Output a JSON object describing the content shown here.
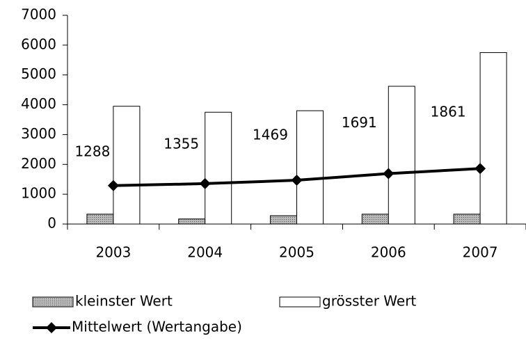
{
  "chart_data": {
    "type": "bar",
    "categories": [
      "2003",
      "2004",
      "2005",
      "2006",
      "2007"
    ],
    "series": [
      {
        "name": "kleinster Wert",
        "type": "bar",
        "color": "#a0a0a0",
        "values": [
          330,
          170,
          280,
          330,
          330
        ]
      },
      {
        "name": "grösster Wert",
        "type": "bar",
        "color": "#ffffff",
        "values": [
          3950,
          3750,
          3800,
          4620,
          5750
        ]
      },
      {
        "name": "Mittelwert (Wertangabe)",
        "type": "line",
        "color": "#000000",
        "values": [
          1288,
          1355,
          1469,
          1691,
          1861
        ]
      }
    ],
    "ylim": [
      0,
      7000
    ],
    "yticks": [
      0,
      1000,
      2000,
      3000,
      4000,
      5000,
      6000,
      7000
    ],
    "grid": false
  }
}
